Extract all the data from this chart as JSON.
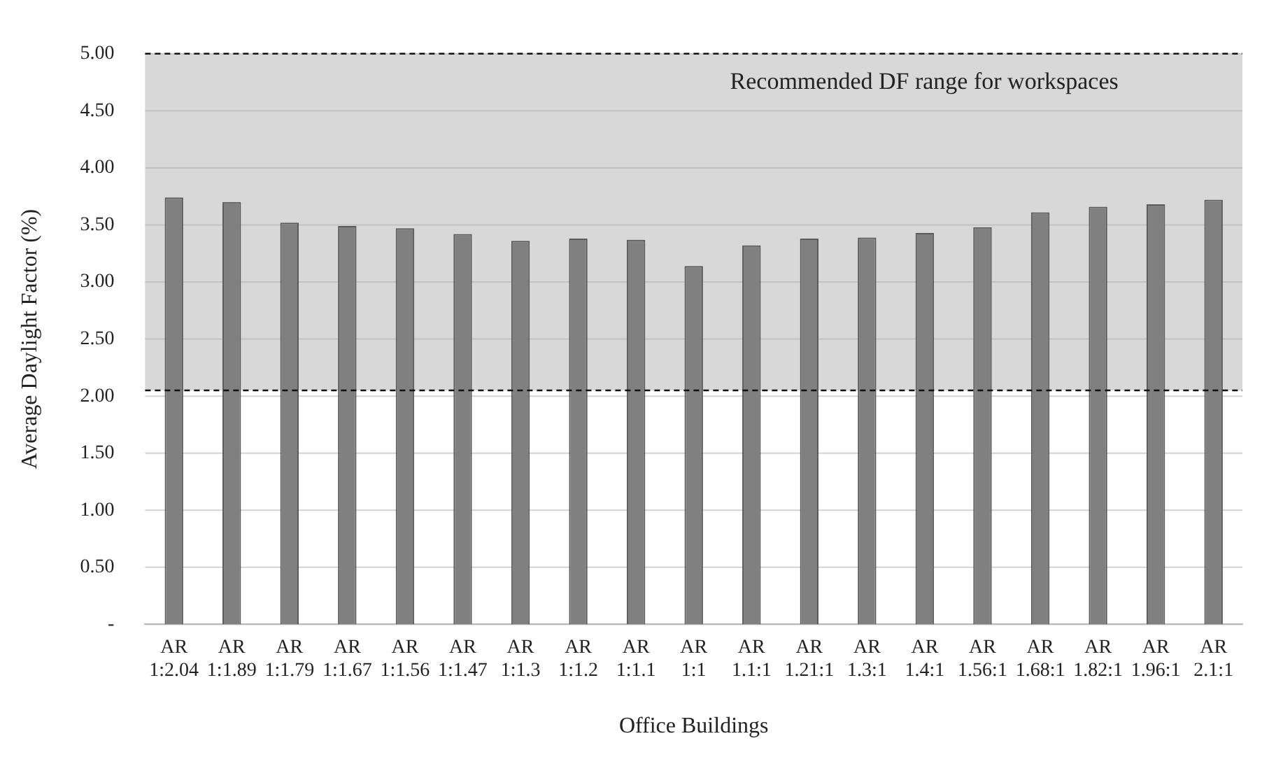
{
  "chart_data": {
    "type": "bar",
    "xlabel": "Office Buildings",
    "ylabel": "Average Daylight Factor (%)",
    "categories": [
      "AR 1:2.04",
      "AR 1:1.89",
      "AR 1:1.79",
      "AR 1:1.67",
      "AR 1:1.56",
      "AR 1:1.47",
      "AR 1:1.3",
      "AR 1:1.2",
      "AR 1:1.1",
      "AR 1:1",
      "AR 1.1:1",
      "AR 1.21:1",
      "AR 1.3:1",
      "AR 1.4:1",
      "AR 1.56:1",
      "AR 1.68:1",
      "AR 1.82:1",
      "AR 1.96:1",
      "AR 2.1:1"
    ],
    "values": [
      3.74,
      3.7,
      3.52,
      3.49,
      3.47,
      3.42,
      3.36,
      3.38,
      3.37,
      3.14,
      3.32,
      3.38,
      3.39,
      3.43,
      3.48,
      3.61,
      3.66,
      3.68,
      3.72
    ],
    "color": "#808080",
    "ylim": [
      0,
      5
    ],
    "yticks": [
      {
        "value": 0,
        "label": "-"
      },
      {
        "value": 0.5,
        "label": "0.50"
      },
      {
        "value": 1,
        "label": "1.00"
      },
      {
        "value": 1.5,
        "label": "1.50"
      },
      {
        "value": 2,
        "label": "2.00"
      },
      {
        "value": 2.5,
        "label": "2.50"
      },
      {
        "value": 3,
        "label": "3.00"
      },
      {
        "value": 3.5,
        "label": "3.50"
      },
      {
        "value": 4,
        "label": "4.00"
      },
      {
        "value": 4.5,
        "label": "4.50"
      },
      {
        "value": 5,
        "label": "5.00"
      }
    ],
    "grid": "y",
    "bands": [
      {
        "axis": "y",
        "from": 2.05,
        "to": 5,
        "label": "Recommended DF range for workspaces",
        "color": "#d9d8d9"
      }
    ],
    "ref_lines": [
      {
        "axis": "y",
        "value": 2.05,
        "line_style": "dashed",
        "color": "#111111"
      },
      {
        "axis": "y",
        "value": 5,
        "line_style": "dashed",
        "color": "#111111"
      }
    ]
  }
}
